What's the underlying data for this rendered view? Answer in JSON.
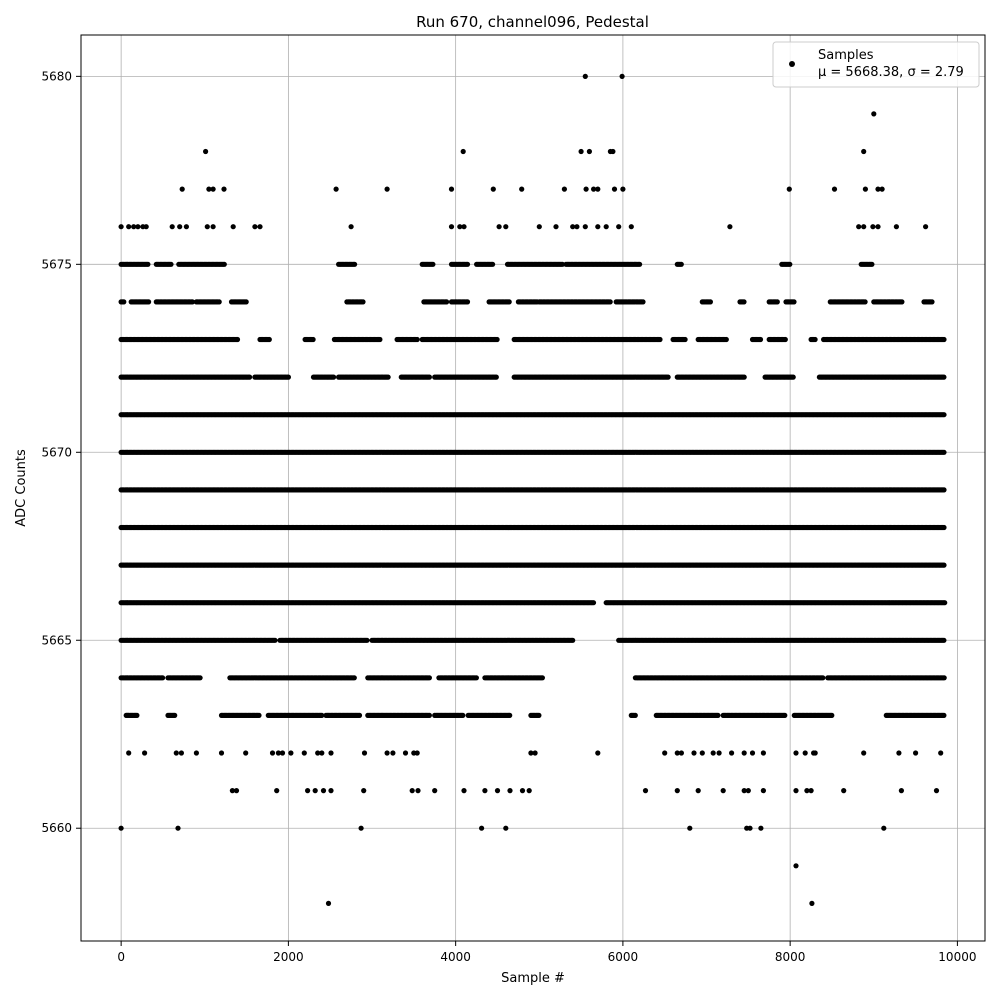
{
  "chart_data": {
    "type": "scatter",
    "title": "Run 670, channel096, Pedestal",
    "xlabel": "Sample #",
    "ylabel": "ADC Counts",
    "xlim": [
      -480,
      10330
    ],
    "ylim": [
      5657,
      5681.1
    ],
    "xticks": [
      0,
      2000,
      4000,
      6000,
      8000,
      10000
    ],
    "xtick_labels": [
      "0",
      "2000",
      "4000",
      "6000",
      "8000",
      "10000"
    ],
    "yticks": [
      5660,
      5665,
      5670,
      5675,
      5680
    ],
    "ytick_labels": [
      "5660",
      "5665",
      "5670",
      "5675",
      "5680"
    ],
    "grid": true,
    "legend": {
      "position": "top-right",
      "label": "Samples",
      "stats": "μ = 5668.38, σ = 2.79"
    },
    "marker_color": "#000000",
    "series": [
      {
        "name": "Samples",
        "x_range": [
          0,
          9850
        ],
        "mean": 5668.38,
        "std": 2.79,
        "points": [
          [
            5550,
            5680
          ],
          [
            5990,
            5680
          ],
          [
            9000,
            5679
          ],
          [
            1010,
            5678
          ],
          [
            4090,
            5678
          ],
          [
            5500,
            5678
          ],
          [
            5600,
            5678
          ],
          [
            5850,
            5678
          ],
          [
            5880,
            5678
          ],
          [
            8880,
            5678
          ],
          [
            730,
            5677
          ],
          [
            1050,
            5677
          ],
          [
            1100,
            5677
          ],
          [
            1230,
            5677
          ],
          [
            2570,
            5677
          ],
          [
            3180,
            5677
          ],
          [
            3950,
            5677
          ],
          [
            4450,
            5677
          ],
          [
            4790,
            5677
          ],
          [
            5300,
            5677
          ],
          [
            5560,
            5677
          ],
          [
            5650,
            5677
          ],
          [
            5700,
            5677
          ],
          [
            5900,
            5677
          ],
          [
            6000,
            5677
          ],
          [
            7990,
            5677
          ],
          [
            8530,
            5677
          ],
          [
            8900,
            5677
          ],
          [
            9050,
            5677
          ],
          [
            9100,
            5677
          ],
          [
            0,
            5676
          ],
          [
            90,
            5676
          ],
          [
            150,
            5676
          ],
          [
            200,
            5676
          ],
          [
            260,
            5676
          ],
          [
            300,
            5676
          ],
          [
            610,
            5676
          ],
          [
            700,
            5676
          ],
          [
            780,
            5676
          ],
          [
            1030,
            5676
          ],
          [
            1100,
            5676
          ],
          [
            1340,
            5676
          ],
          [
            1600,
            5676
          ],
          [
            1660,
            5676
          ],
          [
            2750,
            5676
          ],
          [
            3950,
            5676
          ],
          [
            4050,
            5676
          ],
          [
            4100,
            5676
          ],
          [
            4520,
            5676
          ],
          [
            4600,
            5676
          ],
          [
            5000,
            5676
          ],
          [
            5200,
            5676
          ],
          [
            5400,
            5676
          ],
          [
            5450,
            5676
          ],
          [
            5550,
            5676
          ],
          [
            5700,
            5676
          ],
          [
            5800,
            5676
          ],
          [
            5950,
            5676
          ],
          [
            6100,
            5676
          ],
          [
            7280,
            5676
          ],
          [
            8820,
            5676
          ],
          [
            8880,
            5676
          ],
          [
            8990,
            5676
          ],
          [
            9050,
            5676
          ],
          [
            9270,
            5676
          ],
          [
            9620,
            5676
          ],
          [
            0,
            5660
          ],
          [
            680,
            5660
          ],
          [
            2870,
            5660
          ],
          [
            4310,
            5660
          ],
          [
            4600,
            5660
          ],
          [
            6800,
            5660
          ],
          [
            7480,
            5660
          ],
          [
            7520,
            5660
          ],
          [
            7650,
            5660
          ],
          [
            9120,
            5660
          ],
          [
            8070,
            5659
          ],
          [
            2480,
            5658
          ],
          [
            8260,
            5658
          ],
          [
            1330,
            5661
          ],
          [
            1380,
            5661
          ],
          [
            1860,
            5661
          ],
          [
            2230,
            5661
          ],
          [
            2320,
            5661
          ],
          [
            2420,
            5661
          ],
          [
            2510,
            5661
          ],
          [
            2900,
            5661
          ],
          [
            3480,
            5661
          ],
          [
            3550,
            5661
          ],
          [
            3750,
            5661
          ],
          [
            4100,
            5661
          ],
          [
            4350,
            5661
          ],
          [
            4500,
            5661
          ],
          [
            4650,
            5661
          ],
          [
            4800,
            5661
          ],
          [
            4880,
            5661
          ],
          [
            6270,
            5661
          ],
          [
            6650,
            5661
          ],
          [
            6900,
            5661
          ],
          [
            7200,
            5661
          ],
          [
            7450,
            5661
          ],
          [
            7500,
            5661
          ],
          [
            7680,
            5661
          ],
          [
            8070,
            5661
          ],
          [
            8200,
            5661
          ],
          [
            8250,
            5661
          ],
          [
            8640,
            5661
          ],
          [
            9330,
            5661
          ],
          [
            9750,
            5661
          ],
          [
            90,
            5662
          ],
          [
            280,
            5662
          ],
          [
            660,
            5662
          ],
          [
            720,
            5662
          ],
          [
            900,
            5662
          ],
          [
            1200,
            5662
          ],
          [
            1490,
            5662
          ],
          [
            1810,
            5662
          ],
          [
            1880,
            5662
          ],
          [
            1930,
            5662
          ],
          [
            2030,
            5662
          ],
          [
            2190,
            5662
          ],
          [
            2350,
            5662
          ],
          [
            2400,
            5662
          ],
          [
            2510,
            5662
          ],
          [
            2910,
            5662
          ],
          [
            3180,
            5662
          ],
          [
            3250,
            5662
          ],
          [
            3400,
            5662
          ],
          [
            3500,
            5662
          ],
          [
            3540,
            5662
          ],
          [
            4900,
            5662
          ],
          [
            4950,
            5662
          ],
          [
            5700,
            5662
          ],
          [
            6500,
            5662
          ],
          [
            6650,
            5662
          ],
          [
            6700,
            5662
          ],
          [
            6850,
            5662
          ],
          [
            6950,
            5662
          ],
          [
            7080,
            5662
          ],
          [
            7150,
            5662
          ],
          [
            7300,
            5662
          ],
          [
            7450,
            5662
          ],
          [
            7550,
            5662
          ],
          [
            7680,
            5662
          ],
          [
            8070,
            5662
          ],
          [
            8180,
            5662
          ],
          [
            8280,
            5662
          ],
          [
            8300,
            5662
          ],
          [
            8880,
            5662
          ],
          [
            9300,
            5662
          ],
          [
            9500,
            5662
          ],
          [
            9800,
            5662
          ]
        ],
        "bands": [
          {
            "y": 5680,
            "segments": []
          },
          {
            "y": 5675,
            "segments": [
              [
                0,
                330
              ],
              [
                420,
                600
              ],
              [
                690,
                1240
              ],
              [
                2600,
                2800
              ],
              [
                3600,
                3740
              ],
              [
                3950,
                4150
              ],
              [
                4250,
                4450
              ],
              [
                4620,
                5280
              ],
              [
                5320,
                6200
              ],
              [
                6650,
                6700
              ],
              [
                7900,
                8000
              ],
              [
                8850,
                8990
              ]
            ]
          },
          {
            "y": 5674,
            "segments": [
              [
                0,
                40
              ],
              [
                120,
                330
              ],
              [
                420,
                860
              ],
              [
                900,
                1180
              ],
              [
                1320,
                1500
              ],
              [
                2700,
                2900
              ],
              [
                3620,
                3900
              ],
              [
                3950,
                4150
              ],
              [
                4400,
                4650
              ],
              [
                4750,
                4980
              ],
              [
                5000,
                5850
              ],
              [
                5920,
                6250
              ],
              [
                6950,
                7050
              ],
              [
                7400,
                7450
              ],
              [
                7750,
                7850
              ],
              [
                7950,
                8050
              ],
              [
                8480,
                8900
              ],
              [
                9000,
                9350
              ],
              [
                9600,
                9700
              ]
            ]
          },
          {
            "y": 5673,
            "segments": [
              [
                0,
                1400
              ],
              [
                1660,
                1780
              ],
              [
                2200,
                2300
              ],
              [
                2550,
                3100
              ],
              [
                3300,
                3550
              ],
              [
                3600,
                4500
              ],
              [
                4700,
                6450
              ],
              [
                6600,
                6750
              ],
              [
                6900,
                7250
              ],
              [
                7550,
                7650
              ],
              [
                7750,
                7950
              ],
              [
                8250,
                8300
              ],
              [
                8400,
                9850
              ]
            ]
          },
          {
            "y": 5672,
            "segments": [
              [
                0,
                1550
              ],
              [
                1600,
                2000
              ],
              [
                2300,
                2550
              ],
              [
                2600,
                3200
              ],
              [
                3350,
                3700
              ],
              [
                3750,
                4500
              ],
              [
                4700,
                6550
              ],
              [
                6650,
                7450
              ],
              [
                7700,
                8050
              ],
              [
                8350,
                9850
              ]
            ]
          },
          {
            "y": 5671,
            "segments": [
              [
                0,
                9850
              ]
            ]
          },
          {
            "y": 5670,
            "segments": [
              [
                0,
                9850
              ]
            ]
          },
          {
            "y": 5669,
            "segments": [
              [
                0,
                9850
              ]
            ]
          },
          {
            "y": 5668,
            "segments": [
              [
                0,
                9850
              ]
            ]
          },
          {
            "y": 5667,
            "segments": [
              [
                0,
                9850
              ]
            ]
          },
          {
            "y": 5666,
            "segments": [
              [
                0,
                5650
              ],
              [
                5800,
                9850
              ]
            ]
          },
          {
            "y": 5665,
            "segments": [
              [
                0,
                1850
              ],
              [
                1900,
                2950
              ],
              [
                3000,
                5400
              ],
              [
                5950,
                9850
              ]
            ]
          },
          {
            "y": 5664,
            "segments": [
              [
                0,
                500
              ],
              [
                560,
                950
              ],
              [
                1300,
                2800
              ],
              [
                2950,
                3700
              ],
              [
                3800,
                4250
              ],
              [
                4350,
                5050
              ],
              [
                6150,
                8400
              ],
              [
                8450,
                9850
              ]
            ]
          },
          {
            "y": 5663,
            "segments": [
              [
                60,
                200
              ],
              [
                560,
                650
              ],
              [
                1200,
                1650
              ],
              [
                1760,
                2400
              ],
              [
                2450,
                2850
              ],
              [
                2950,
                3700
              ],
              [
                3750,
                4100
              ],
              [
                4150,
                4650
              ],
              [
                4900,
                5000
              ],
              [
                6100,
                6150
              ],
              [
                6400,
                7150
              ],
              [
                7200,
                7950
              ],
              [
                8050,
                8500
              ],
              [
                9150,
                9850
              ]
            ]
          }
        ]
      }
    ]
  }
}
